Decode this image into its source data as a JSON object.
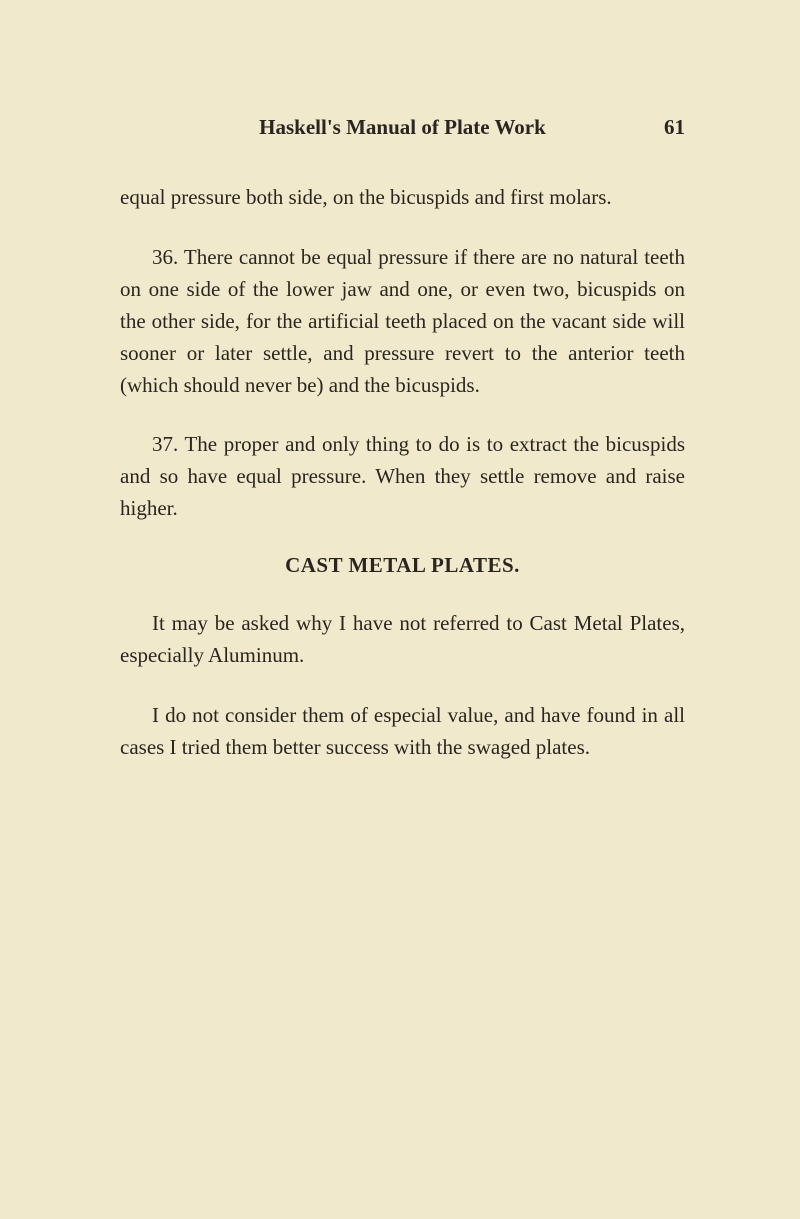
{
  "page": {
    "background_color": "#f0e9cc",
    "text_color": "#2a2520",
    "font_family": "Georgia, Times New Roman, serif",
    "body_fontsize": 21,
    "line_height": 1.52
  },
  "header": {
    "title": "Haskell's Manual of Plate Work",
    "page_number": "61"
  },
  "paragraphs": {
    "p1": "equal pressure both side, on the bicuspids and first molars.",
    "p2": "36. There cannot be equal pressure if there are no natural teeth on one side of the lower jaw and one, or even two, bicuspids on the other side, for the artificial teeth placed on the vacant side will sooner or later settle, and pressure revert to the anterior teeth (which should never be) and the bicuspids.",
    "p3": "37. The proper and only thing to do is to extract the bicuspids and so have equal pressure. When they settle remove and raise higher.",
    "section_title": "CAST METAL PLATES.",
    "p4": "It may be asked why I have not referred to Cast Metal Plates, especially Aluminum.",
    "p5": "I do not consider them of especial value, and have found in all cases I tried them better success with the swaged plates."
  }
}
